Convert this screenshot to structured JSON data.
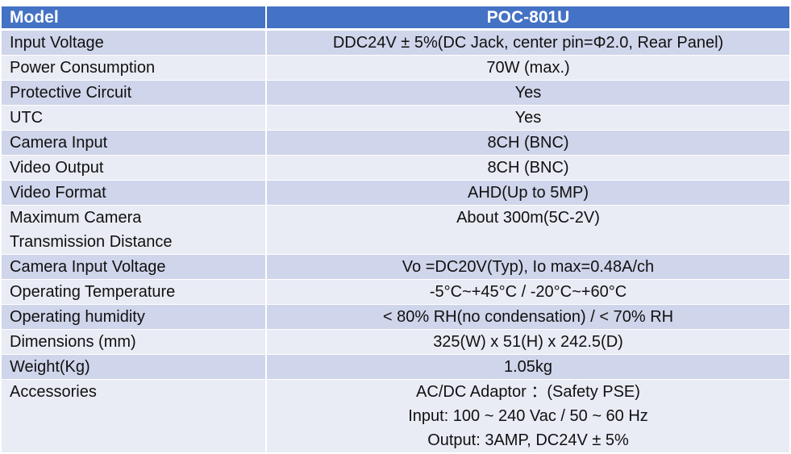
{
  "header": {
    "col1": "Model",
    "col2": "POC-801U"
  },
  "rows": [
    {
      "label": "Input Voltage",
      "value": "DDC24V ± 5%(DC Jack, center pin=Φ2.0, Rear Panel)"
    },
    {
      "label": "Power Consumption",
      "value": "70W (max.)"
    },
    {
      "label": "Protective Circuit",
      "value": "Yes"
    },
    {
      "label": "UTC",
      "value": "Yes"
    },
    {
      "label": "Camera Input",
      "value": "8CH (BNC)"
    },
    {
      "label": "Video Output",
      "value": "8CH (BNC)"
    },
    {
      "label": "Video Format",
      "value": "AHD(Up to 5MP)"
    },
    {
      "label_lines": [
        "Maximum Camera",
        "Transmission Distance"
      ],
      "value": "About 300m(5C-2V)"
    },
    {
      "label": "Camera Input Voltage",
      "value": "Vo =DC20V(Typ), Io max=0.48A/ch"
    },
    {
      "label": "Operating Temperature",
      "value": "-5°C~+45°C  / -20°C~+60°C"
    },
    {
      "label": "Operating humidity",
      "value": "< 80% RH(no condensation) / < 70% RH"
    },
    {
      "label": "Dimensions (mm)",
      "value": "325(W) x 51(H) x 242.5(D)"
    },
    {
      "label": "Weight(Kg)",
      "value": "1.05kg"
    },
    {
      "label": "Accessories",
      "value_lines": [
        "AC/DC Adaptor ：(Safety PSE)",
        "Input: 100 ~ 240 Vac / 50 ~ 60 Hz",
        "Output: 3AMP, DC24V ± 5%"
      ]
    }
  ],
  "colors": {
    "header_bg": "#4472c4",
    "row_dark": "#cfd5ea",
    "row_light": "#e9ebf5"
  }
}
